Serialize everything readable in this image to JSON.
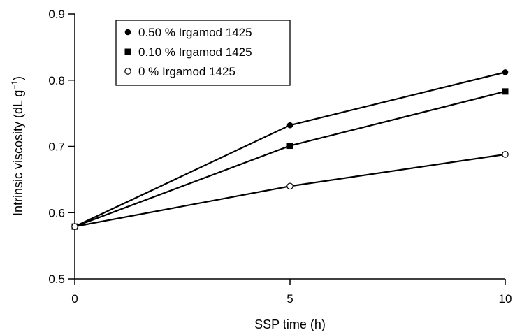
{
  "chart_data": {
    "type": "line",
    "xlabel": "SSP time (h)",
    "ylabel_main": "Intrinsic viscosity (dL g",
    "ylabel_sup": "−1",
    "ylabel_close": ")",
    "xlim": [
      0,
      10
    ],
    "ylim": [
      0.5,
      0.9
    ],
    "x_ticks": [
      0,
      5,
      10
    ],
    "x_tick_labels": [
      "0",
      "5",
      "10"
    ],
    "y_ticks": [
      0.5,
      0.6,
      0.7,
      0.8,
      0.9
    ],
    "y_tick_labels": [
      "0.5",
      "0.6",
      "0.7",
      "0.8",
      "0.9"
    ],
    "grid": false,
    "legend_position": "top-left",
    "series": [
      {
        "name": "0.50 % Irgamod 1425",
        "marker": "filled-circle",
        "x": [
          0,
          5,
          10
        ],
        "values": [
          0.579,
          0.732,
          0.812
        ]
      },
      {
        "name": "0.10 % Irgamod 1425",
        "marker": "filled-square",
        "x": [
          0,
          5,
          10
        ],
        "values": [
          0.579,
          0.701,
          0.783
        ]
      },
      {
        "name": "0 % Irgamod 1425",
        "marker": "open-circle",
        "x": [
          0,
          5,
          10
        ],
        "values": [
          0.579,
          0.64,
          0.688
        ]
      }
    ]
  }
}
